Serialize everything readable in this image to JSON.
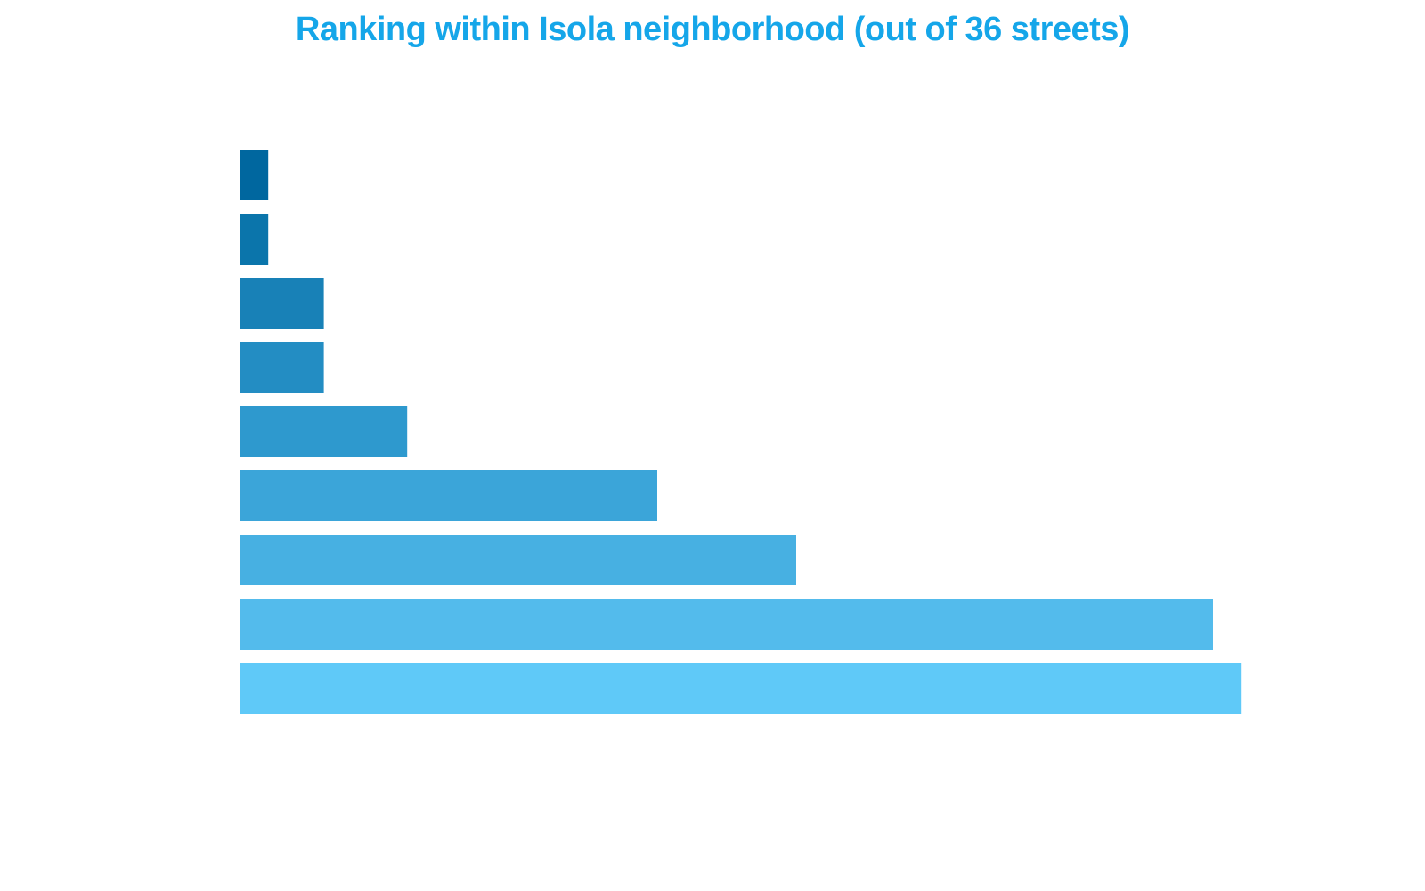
{
  "chart_data": {
    "type": "bar",
    "orientation": "horizontal",
    "title": "Ranking within Isola neighborhood (out of 36 streets)",
    "xlabel": "",
    "ylabel": "",
    "xlim": [
      0,
      36
    ],
    "grid": false,
    "legend": "none",
    "values": [
      1,
      1,
      3,
      3,
      6,
      15,
      20,
      35,
      36
    ],
    "colors": [
      "#00679f",
      "#0b75ab",
      "#1881b7",
      "#238dc3",
      "#2e99ce",
      "#3ba5d9",
      "#47b0e2",
      "#53bbec",
      "#5fc9f8"
    ],
    "title_color": "#15a6e9"
  }
}
